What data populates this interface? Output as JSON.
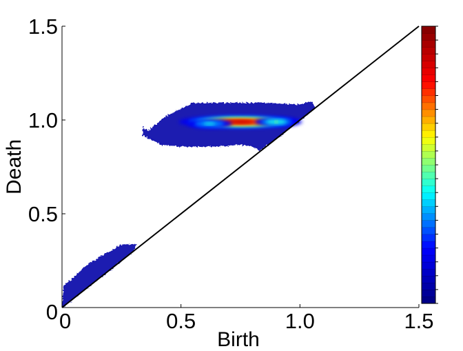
{
  "chart_data": {
    "type": "heatmap",
    "title": "",
    "xlabel": "Birth",
    "ylabel": "Death",
    "xlim": [
      0,
      1.5
    ],
    "ylim": [
      0,
      1.5
    ],
    "x_ticks": [
      {
        "value": 0,
        "label": "0"
      },
      {
        "value": 0.5,
        "label": "0.5"
      },
      {
        "value": 1.0,
        "label": "1.0"
      },
      {
        "value": 1.5,
        "label": "1.5"
      }
    ],
    "y_ticks": [
      {
        "value": 0,
        "label": "0"
      },
      {
        "value": 0.5,
        "label": "0.5"
      },
      {
        "value": 1.0,
        "label": "1.0"
      },
      {
        "value": 1.5,
        "label": "1.5"
      }
    ],
    "diagonal_line": {
      "from": [
        0,
        0
      ],
      "to": [
        1.5,
        1.5
      ],
      "color": "#000000"
    },
    "regions": [
      {
        "name_hint": "low persistence cluster",
        "outline": [
          [
            0.0,
            0.0
          ],
          [
            0.01,
            0.12
          ],
          [
            0.05,
            0.16
          ],
          [
            0.1,
            0.22
          ],
          [
            0.16,
            0.27
          ],
          [
            0.22,
            0.31
          ],
          [
            0.25,
            0.335
          ],
          [
            0.31,
            0.335
          ],
          [
            0.3,
            0.3
          ],
          [
            0.15,
            0.15
          ],
          [
            0.02,
            0.02
          ]
        ],
        "fill": "#1a1ab0"
      },
      {
        "name_hint": "high persistence cluster",
        "outline": [
          [
            0.34,
            0.96
          ],
          [
            0.36,
            0.94
          ],
          [
            0.4,
            0.98
          ],
          [
            0.44,
            1.02
          ],
          [
            0.5,
            1.06
          ],
          [
            0.55,
            1.09
          ],
          [
            0.7,
            1.09
          ],
          [
            0.85,
            1.09
          ],
          [
            1.0,
            1.08
          ],
          [
            1.05,
            1.1
          ],
          [
            1.06,
            1.06
          ],
          [
            0.96,
            0.96
          ],
          [
            0.9,
            0.9
          ],
          [
            0.83,
            0.84
          ],
          [
            0.8,
            0.86
          ],
          [
            0.75,
            0.87
          ],
          [
            0.65,
            0.86
          ],
          [
            0.5,
            0.86
          ],
          [
            0.42,
            0.87
          ],
          [
            0.37,
            0.9
          ],
          [
            0.34,
            0.92
          ]
        ],
        "fill": "#1a1ab0"
      }
    ],
    "hotspots": [
      {
        "x": 0.75,
        "y": 0.99,
        "sx": 0.14,
        "sy": 0.018,
        "weight": 1.0
      },
      {
        "x": 0.9,
        "y": 0.99,
        "sx": 0.06,
        "sy": 0.015,
        "weight": 0.55
      },
      {
        "x": 0.62,
        "y": 0.98,
        "sx": 0.07,
        "sy": 0.018,
        "weight": 0.45
      }
    ],
    "colorbar": {
      "colormap": "jet",
      "colors": [
        "#000080",
        "#0000ff",
        "#00ffff",
        "#ffff00",
        "#ff0000",
        "#800000"
      ],
      "min": 0,
      "max": 1,
      "segments": 40,
      "show_tick_labels": false
    },
    "grid": false
  }
}
